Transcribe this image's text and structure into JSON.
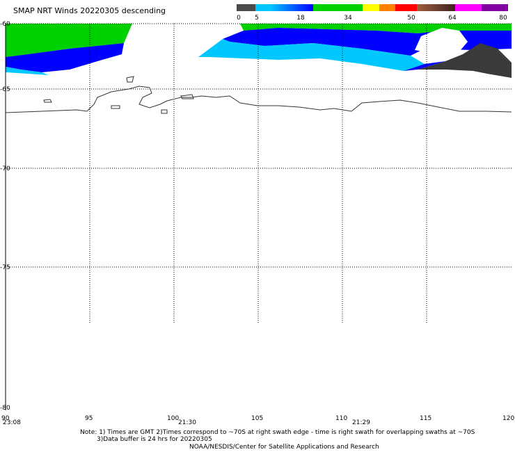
{
  "title": "SMAP NRT Winds  20220305 descending",
  "colorbar": {
    "segments": [
      "#4a4a4a",
      "#00c8ff",
      "#0000ff",
      "#00d000",
      "#ffff00",
      "#ff6000",
      "#ff0000",
      "#a06040",
      "#ff00ff",
      "#8000a0"
    ],
    "labels": [
      "0",
      "5",
      "18",
      "34",
      "50",
      "64",
      "80"
    ]
  },
  "lat_labels": [
    "-60",
    "-65",
    "-70",
    "-75",
    "-80"
  ],
  "lon_labels": [
    "90",
    "95",
    "100",
    "105",
    "110",
    "115",
    "120"
  ],
  "time_labels": [
    "23:08",
    "21:30",
    "21:29"
  ],
  "note": {
    "line1": "Note: 1) Times are GMT 2)Times correspond to ~70S at right swath edge - time is right swath for overlapping swaths at ~70S",
    "line2": "3)Data buffer is 24 hrs for 20220305",
    "line3": "NOAA/NESDIS/Center for Satellite Applications and Research"
  },
  "colors": {
    "land": "#ffffff",
    "calm": "#3a3a3a",
    "light": "#00c8ff",
    "moderate": "#0000ff",
    "strong": "#00d000"
  }
}
